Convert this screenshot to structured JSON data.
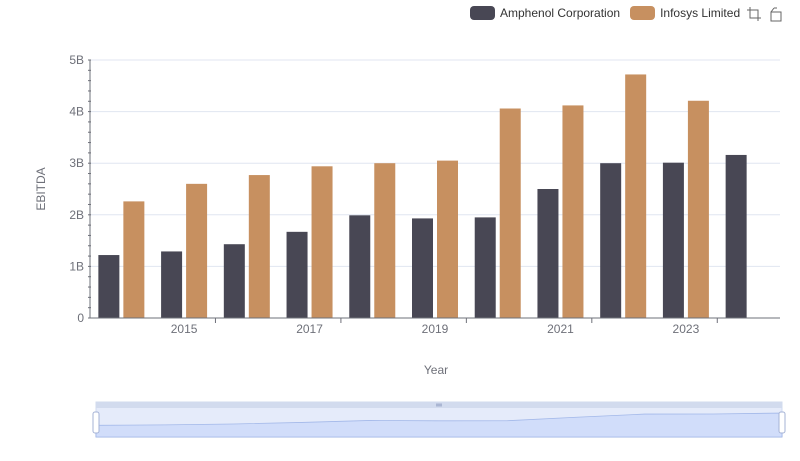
{
  "chart_data": {
    "type": "bar",
    "categories": [
      "2014",
      "2015",
      "2016",
      "2017",
      "2018",
      "2019",
      "2020",
      "2021",
      "2022",
      "2023",
      "2024"
    ],
    "x_tick_labels": [
      "2015",
      "2017",
      "2019",
      "2021",
      "2023"
    ],
    "series": [
      {
        "name": "Amphenol Corporation",
        "color": "#484754",
        "values": [
          1.22,
          1.29,
          1.43,
          1.67,
          1.99,
          1.93,
          1.95,
          2.5,
          3.0,
          3.01,
          3.16
        ]
      },
      {
        "name": "Infosys Limited",
        "color": "#c79060",
        "values": [
          2.26,
          2.6,
          2.77,
          2.94,
          3.0,
          3.05,
          4.06,
          4.12,
          4.72,
          4.21,
          null
        ]
      }
    ],
    "ylim": [
      0,
      5
    ],
    "y_ticks": [
      "0",
      "1B",
      "2B",
      "3B",
      "4B",
      "5B"
    ],
    "xlabel": "Year",
    "ylabel": "EBITDA",
    "legend_position": "top-right",
    "grid": true
  },
  "toolbox": {
    "zoom_icon": "zoom-icon",
    "restore_icon": "restore-icon"
  },
  "datazoom": {
    "range_start_percent": 0,
    "range_end_percent": 100
  }
}
